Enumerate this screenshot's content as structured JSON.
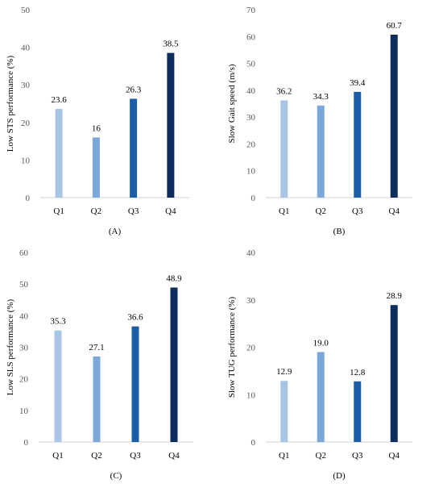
{
  "chart_data": [
    {
      "type": "bar",
      "panel_label": "(A)",
      "categories": [
        "Q1",
        "Q2",
        "Q3",
        "Q4"
      ],
      "values": [
        23.6,
        16,
        26.3,
        38.5
      ],
      "value_labels": [
        "23.6",
        "16",
        "26.3",
        "38.5"
      ],
      "ylabel": "Low STS performance (%)",
      "ylim": [
        0,
        50
      ],
      "yticks": [
        "0",
        "10",
        "20",
        "30",
        "40",
        "50"
      ],
      "grid": false,
      "colors": [
        "#a9c5e6",
        "#7ba7da",
        "#1a5ea8",
        "#0d2e5c"
      ]
    },
    {
      "type": "bar",
      "panel_label": "(B)",
      "categories": [
        "Q1",
        "Q2",
        "Q3",
        "Q4"
      ],
      "values": [
        36.2,
        34.3,
        39.4,
        60.7
      ],
      "value_labels": [
        "36.2",
        "34.3",
        "39.4",
        "60.7"
      ],
      "ylabel": "Slow Gait speed (m/s)",
      "ylim": [
        0,
        70
      ],
      "yticks": [
        "0",
        "10",
        "20",
        "30",
        "40",
        "50",
        "60",
        "70"
      ],
      "grid": false,
      "colors": [
        "#a9c5e6",
        "#7ba7da",
        "#1a5ea8",
        "#0d2e5c"
      ]
    },
    {
      "type": "bar",
      "panel_label": "(C)",
      "categories": [
        "Q1",
        "Q2",
        "Q3",
        "Q4"
      ],
      "values": [
        35.3,
        27.1,
        36.6,
        48.9
      ],
      "value_labels": [
        "35.3",
        "27.1",
        "36.6",
        "48.9"
      ],
      "ylabel": "Low SLS performance (%)",
      "ylim": [
        0,
        60
      ],
      "yticks": [
        "0",
        "10",
        "20",
        "30",
        "40",
        "50",
        "60"
      ],
      "grid": false,
      "colors": [
        "#a9c5e6",
        "#7ba7da",
        "#1a5ea8",
        "#0d2e5c"
      ]
    },
    {
      "type": "bar",
      "panel_label": "(D)",
      "categories": [
        "Q1",
        "Q2",
        "Q3",
        "Q4"
      ],
      "values": [
        12.9,
        19.0,
        12.8,
        28.9
      ],
      "value_labels": [
        "12.9",
        "19.0",
        "12.8",
        "28.9"
      ],
      "ylabel": "Slow TUG performance (%)",
      "ylim": [
        0,
        40
      ],
      "yticks": [
        "0",
        "10",
        "20",
        "30",
        "40"
      ],
      "grid": false,
      "colors": [
        "#a9c5e6",
        "#7ba7da",
        "#1a5ea8",
        "#0d2e5c"
      ]
    }
  ]
}
